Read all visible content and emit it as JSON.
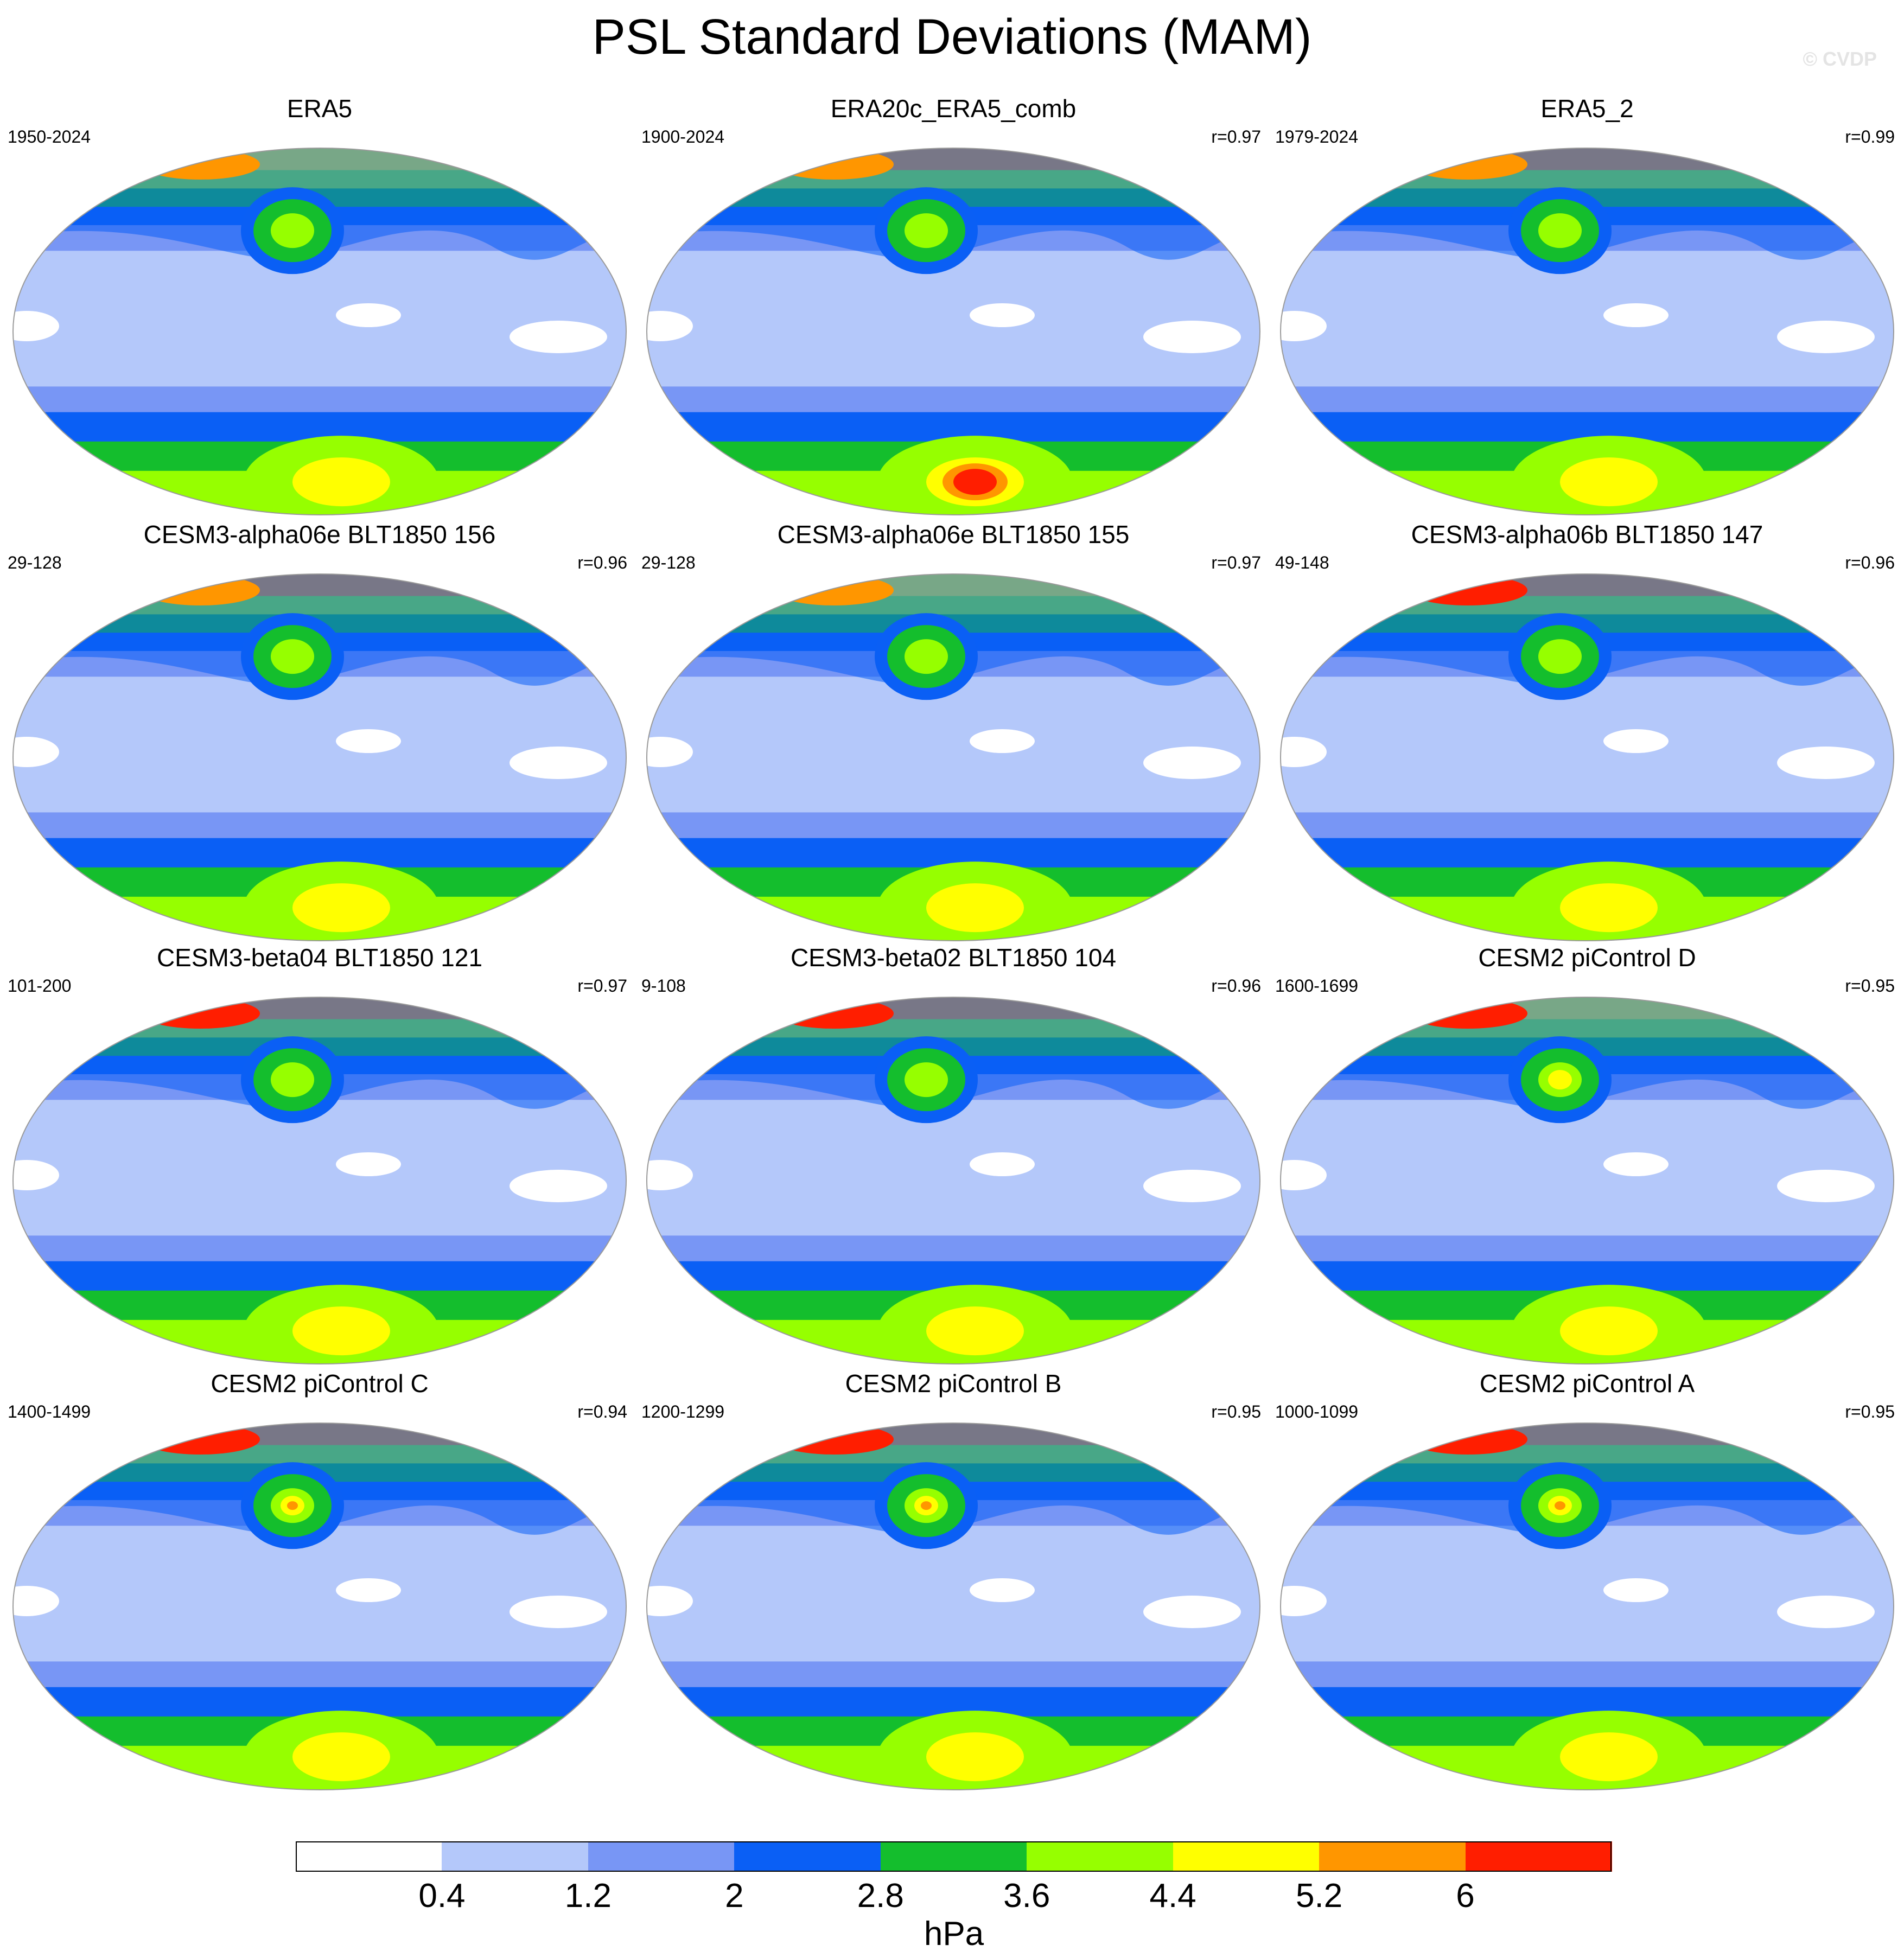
{
  "title": "PSL Standard Deviations (MAM)",
  "watermark": "© CVDP",
  "panels": [
    {
      "title": "ERA5",
      "years": "1950-2024",
      "corr": ""
    },
    {
      "title": "ERA20c_ERA5_comb",
      "years": "1900-2024",
      "corr": "r=0.97"
    },
    {
      "title": "ERA5_2",
      "years": "1979-2024",
      "corr": "r=0.99"
    },
    {
      "title": "CESM3-alpha06e BLT1850 156",
      "years": "29-128",
      "corr": "r=0.96"
    },
    {
      "title": "CESM3-alpha06e BLT1850 155",
      "years": "29-128",
      "corr": "r=0.97"
    },
    {
      "title": "CESM3-alpha06b BLT1850 147",
      "years": "49-148",
      "corr": "r=0.96"
    },
    {
      "title": "CESM3-beta04 BLT1850 121",
      "years": "101-200",
      "corr": "r=0.97"
    },
    {
      "title": "CESM3-beta02 BLT1850 104",
      "years": "9-108",
      "corr": "r=0.96"
    },
    {
      "title": "CESM2 piControl D",
      "years": "1600-1699",
      "corr": "r=0.95"
    },
    {
      "title": "CESM2 piControl C",
      "years": "1400-1499",
      "corr": "r=0.94"
    },
    {
      "title": "CESM2 piControl B",
      "years": "1200-1299",
      "corr": "r=0.95"
    },
    {
      "title": "CESM2 piControl A",
      "years": "1000-1099",
      "corr": "r=0.95"
    }
  ],
  "colorbar": {
    "units": "hPa",
    "levels": [
      "0.4",
      "1.2",
      "2",
      "2.8",
      "3.6",
      "4.4",
      "5.2",
      "6"
    ],
    "colors": [
      "#ffffff",
      "#b4c8fa",
      "#7896f5",
      "#0a5ff5",
      "#14be2d",
      "#96ff00",
      "#ffff00",
      "#ff9600",
      "#ff1e00"
    ]
  }
}
